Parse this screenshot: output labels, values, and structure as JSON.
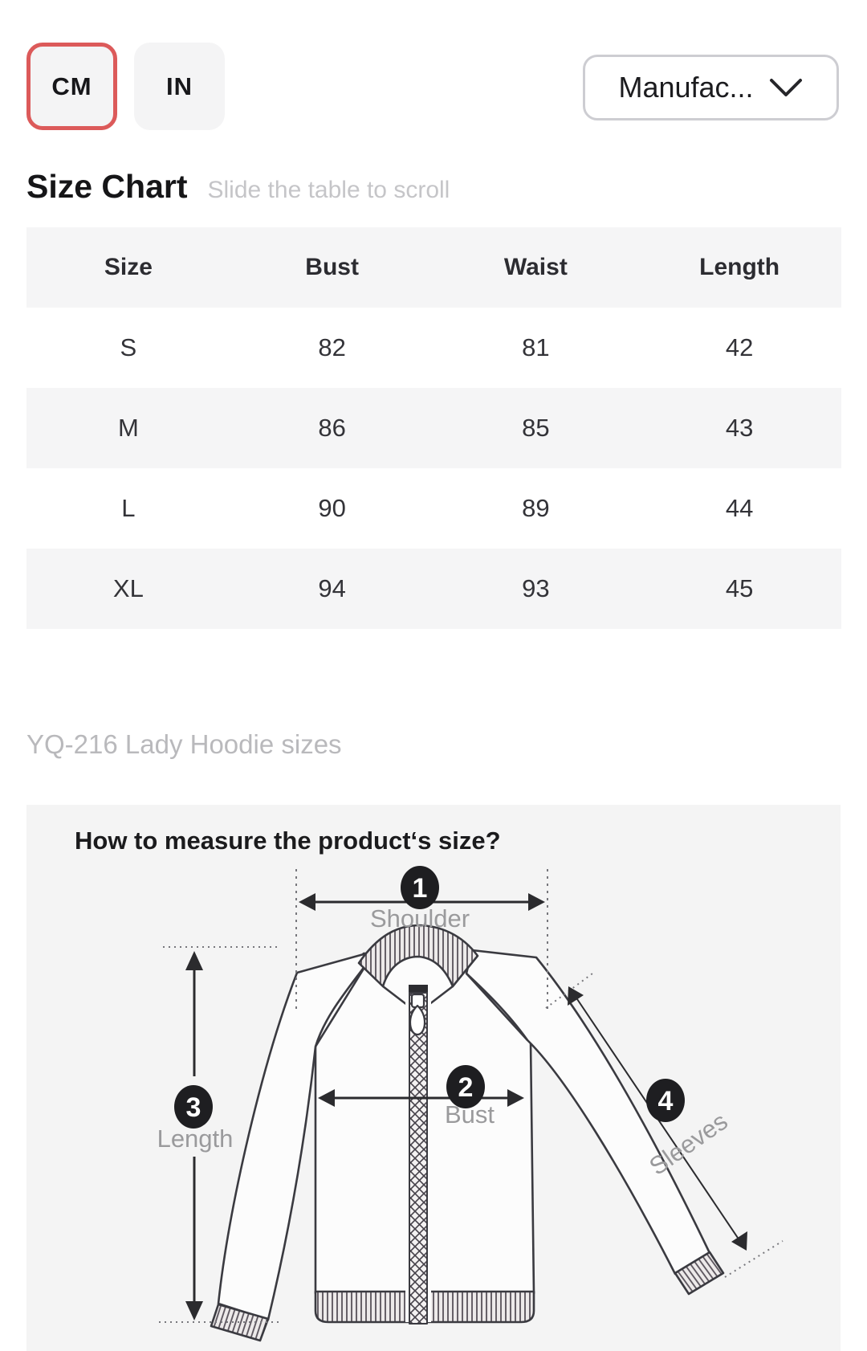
{
  "unit_toggle": {
    "cm_label": "CM",
    "in_label": "IN",
    "selected": "CM"
  },
  "standard_dropdown": {
    "label": "Manufac..."
  },
  "section": {
    "title": "Size Chart",
    "hint": "Slide the table to scroll"
  },
  "size_table": {
    "columns": [
      "Size",
      "Bust",
      "Waist",
      "Length"
    ],
    "rows": [
      [
        "S",
        "82",
        "81",
        "42"
      ],
      [
        "M",
        "86",
        "85",
        "43"
      ],
      [
        "L",
        "90",
        "89",
        "44"
      ],
      [
        "XL",
        "94",
        "93",
        "45"
      ]
    ]
  },
  "caption": "YQ-216 Lady Hoodie sizes",
  "measure_guide": {
    "title": "How to measure the product‘s size?",
    "points": [
      {
        "n": "1",
        "label": "Shoulder"
      },
      {
        "n": "2",
        "label": "Bust"
      },
      {
        "n": "3",
        "label": "Length"
      },
      {
        "n": "4",
        "label": "Sleeves"
      }
    ]
  },
  "colors": {
    "accent_red": "#dc5a5a",
    "panel_bg": "#f4f4f4",
    "row_alt_bg": "#f5f5f6",
    "muted_text": "#b9b9bc",
    "diagram_line": "#3a3a40",
    "diagram_label": "#9a9a9c"
  }
}
